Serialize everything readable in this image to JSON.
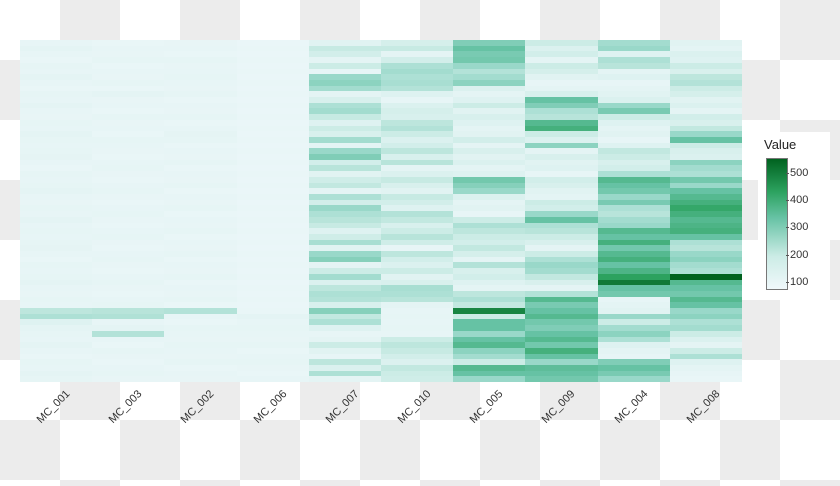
{
  "chart_data": {
    "type": "heatmap",
    "title": "",
    "xlabel": "",
    "ylabel": "",
    "columns": [
      "MC_001",
      "MC_003",
      "MC_002",
      "MC_006",
      "MC_007",
      "MC_010",
      "MC_005",
      "MC_009",
      "MC_004",
      "MC_008"
    ],
    "legend": {
      "title": "Value",
      "ticks": [
        100,
        200,
        300,
        400,
        500
      ],
      "range": [
        80,
        560
      ]
    },
    "rows_per_column": 60,
    "values": [
      [
        110,
        120,
        110,
        105,
        115,
        110,
        120,
        110,
        105,
        115,
        110,
        120,
        110,
        108,
        115,
        110,
        120,
        115,
        110,
        112,
        118,
        110,
        105,
        115,
        110,
        112,
        120,
        110,
        108,
        115,
        110,
        120,
        110,
        115,
        110,
        112,
        118,
        110,
        105,
        115,
        110,
        112,
        120,
        110,
        108,
        115,
        110,
        230,
        260,
        140,
        120,
        115,
        110,
        120,
        110,
        105,
        115,
        110,
        120,
        112
      ],
      [
        105,
        110,
        108,
        112,
        105,
        110,
        108,
        112,
        105,
        120,
        108,
        110,
        105,
        112,
        108,
        110,
        105,
        112,
        110,
        108,
        105,
        110,
        112,
        108,
        105,
        110,
        112,
        108,
        105,
        110,
        112,
        108,
        105,
        110,
        112,
        108,
        105,
        110,
        112,
        108,
        105,
        110,
        112,
        108,
        105,
        110,
        112,
        240,
        255,
        110,
        120,
        250,
        110,
        105,
        112,
        108,
        105,
        110,
        112,
        108
      ],
      [
        108,
        110,
        105,
        112,
        108,
        110,
        115,
        110,
        108,
        112,
        105,
        110,
        108,
        112,
        105,
        110,
        118,
        112,
        105,
        110,
        108,
        115,
        105,
        110,
        108,
        112,
        105,
        110,
        108,
        112,
        105,
        110,
        108,
        112,
        105,
        110,
        108,
        112,
        105,
        110,
        108,
        112,
        105,
        110,
        108,
        112,
        105,
        250,
        110,
        105,
        112,
        110,
        108,
        115,
        110,
        108,
        112,
        105,
        110,
        108
      ],
      [
        100,
        102,
        100,
        105,
        100,
        102,
        100,
        105,
        100,
        102,
        100,
        105,
        100,
        102,
        100,
        105,
        100,
        102,
        100,
        105,
        100,
        102,
        100,
        105,
        100,
        102,
        100,
        105,
        100,
        102,
        100,
        105,
        100,
        102,
        100,
        105,
        100,
        102,
        100,
        105,
        100,
        102,
        100,
        105,
        100,
        102,
        100,
        105,
        120,
        110,
        115,
        110,
        108,
        112,
        105,
        110,
        115,
        108,
        105,
        110
      ],
      [
        130,
        210,
        180,
        120,
        200,
        110,
        300,
        320,
        280,
        120,
        160,
        260,
        280,
        210,
        140,
        200,
        160,
        280,
        120,
        300,
        340,
        180,
        240,
        130,
        190,
        220,
        120,
        260,
        180,
        300,
        260,
        240,
        210,
        140,
        190,
        270,
        130,
        300,
        330,
        120,
        200,
        280,
        150,
        230,
        260,
        250,
        160,
        330,
        220,
        260,
        140,
        110,
        120,
        200,
        130,
        110,
        230,
        150,
        260,
        120
      ],
      [
        170,
        210,
        120,
        180,
        260,
        280,
        260,
        270,
        250,
        140,
        110,
        150,
        170,
        160,
        230,
        250,
        200,
        150,
        180,
        230,
        160,
        240,
        120,
        150,
        210,
        160,
        130,
        210,
        180,
        140,
        250,
        220,
        160,
        200,
        240,
        190,
        110,
        230,
        180,
        150,
        200,
        130,
        160,
        270,
        260,
        240,
        120,
        110,
        115,
        110,
        115,
        110,
        200,
        230,
        210,
        180,
        150,
        220,
        200,
        190
      ],
      [
        340,
        380,
        350,
        360,
        300,
        250,
        280,
        320,
        150,
        120,
        140,
        200,
        130,
        160,
        140,
        120,
        130,
        180,
        120,
        160,
        130,
        150,
        120,
        140,
        360,
        330,
        300,
        150,
        120,
        130,
        110,
        200,
        260,
        230,
        200,
        180,
        220,
        170,
        120,
        250,
        160,
        180,
        140,
        120,
        230,
        260,
        220,
        500,
        200,
        380,
        380,
        300,
        380,
        400,
        320,
        280,
        200,
        400,
        380,
        300
      ],
      [
        200,
        150,
        180,
        120,
        200,
        170,
        130,
        110,
        120,
        160,
        380,
        340,
        260,
        240,
        400,
        420,
        200,
        150,
        320,
        120,
        160,
        130,
        140,
        110,
        180,
        160,
        130,
        120,
        200,
        180,
        300,
        380,
        260,
        240,
        200,
        160,
        120,
        200,
        260,
        300,
        280,
        220,
        160,
        120,
        250,
        400,
        350,
        380,
        400,
        360,
        340,
        380,
        400,
        360,
        420,
        380,
        300,
        390,
        380,
        360
      ],
      [
        280,
        300,
        140,
        260,
        240,
        120,
        140,
        110,
        120,
        130,
        150,
        300,
        350,
        200,
        140,
        120,
        130,
        110,
        140,
        220,
        200,
        160,
        180,
        260,
        400,
        380,
        360,
        300,
        350,
        260,
        240,
        280,
        300,
        400,
        380,
        420,
        360,
        400,
        420,
        380,
        410,
        450,
        520,
        380,
        360,
        110,
        120,
        130,
        300,
        200,
        280,
        320,
        260,
        140,
        120,
        110,
        340,
        380,
        350,
        300
      ],
      [
        130,
        120,
        150,
        140,
        200,
        160,
        230,
        250,
        200,
        170,
        130,
        150,
        120,
        180,
        160,
        220,
        300,
        380,
        200,
        160,
        150,
        320,
        280,
        260,
        360,
        300,
        380,
        400,
        420,
        440,
        420,
        400,
        410,
        420,
        380,
        260,
        240,
        300,
        320,
        280,
        260,
        560,
        400,
        380,
        360,
        400,
        380,
        300,
        320,
        260,
        280,
        200,
        150,
        120,
        200,
        260,
        140,
        120,
        110,
        105
      ]
    ]
  }
}
